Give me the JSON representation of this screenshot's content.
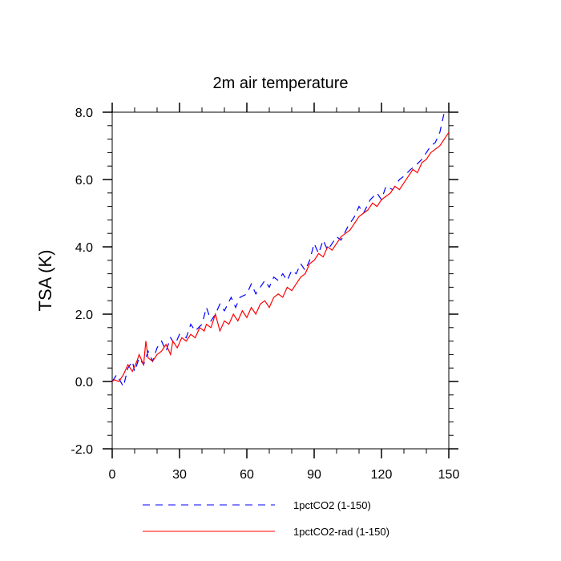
{
  "chart_data": {
    "type": "line",
    "title": "2m air temperature",
    "xlabel": "",
    "ylabel": "TSA  (K)",
    "xlim": [
      0,
      150
    ],
    "ylim": [
      -2.0,
      8.0
    ],
    "x_ticks": [
      0,
      30,
      60,
      90,
      120,
      150
    ],
    "x_tick_labels": [
      "0",
      "30",
      "60",
      "90",
      "120",
      "150"
    ],
    "y_ticks": [
      -2.0,
      0.0,
      2.0,
      4.0,
      6.0,
      8.0
    ],
    "y_tick_labels": [
      "-2.0",
      "0.0",
      "2.0",
      "4.0",
      "6.0",
      "8.0"
    ],
    "grid": false,
    "legend_position": "bottom",
    "series": [
      {
        "name": "1pctCO2 (1-150)",
        "color": "#0000ff",
        "style": "dashed",
        "x": [
          0,
          2,
          5,
          7,
          9,
          10,
          12,
          14,
          16,
          18,
          20,
          22,
          24,
          26,
          28,
          30,
          33,
          35,
          37,
          40,
          42,
          44,
          46,
          48,
          50,
          53,
          55,
          57,
          60,
          62,
          64,
          66,
          68,
          70,
          72,
          74,
          76,
          78,
          80,
          82,
          84,
          86,
          88,
          90,
          92,
          94,
          96,
          98,
          100,
          102,
          105,
          108,
          110,
          112,
          115,
          118,
          120,
          122,
          125,
          128,
          130,
          133,
          135,
          138,
          140,
          142,
          144,
          146,
          148
        ],
        "y": [
          0.0,
          0.2,
          -0.15,
          0.4,
          0.6,
          0.3,
          0.7,
          0.5,
          0.9,
          0.6,
          1.0,
          1.2,
          0.9,
          1.3,
          1.1,
          1.4,
          1.3,
          1.7,
          1.5,
          1.7,
          2.2,
          1.8,
          2.0,
          2.3,
          2.1,
          2.5,
          2.2,
          2.5,
          2.6,
          2.9,
          2.6,
          2.8,
          3.0,
          2.8,
          3.1,
          3.0,
          3.2,
          3.0,
          3.3,
          3.2,
          3.5,
          3.3,
          3.6,
          4.1,
          3.8,
          4.2,
          3.9,
          4.1,
          4.3,
          4.2,
          4.6,
          4.9,
          5.2,
          5.0,
          5.4,
          5.6,
          5.4,
          5.8,
          5.7,
          6.0,
          6.1,
          6.3,
          6.4,
          6.6,
          6.8,
          7.0,
          7.1,
          7.4,
          8.0
        ]
      },
      {
        "name": "1pctCO2-rad (1-150)",
        "color": "#ff0000",
        "style": "solid",
        "x": [
          0,
          1,
          3,
          5,
          7,
          9,
          11,
          12,
          14,
          15,
          16,
          18,
          20,
          22,
          24,
          26,
          27,
          29,
          31,
          33,
          35,
          37,
          39,
          41,
          42,
          44,
          46,
          48,
          50,
          52,
          54,
          56,
          58,
          60,
          62,
          64,
          66,
          68,
          70,
          72,
          74,
          76,
          78,
          80,
          82,
          84,
          86,
          88,
          90,
          92,
          94,
          96,
          98,
          100,
          102,
          104,
          106,
          108,
          110,
          112,
          114,
          116,
          118,
          120,
          122,
          124,
          126,
          128,
          130,
          132,
          134,
          136,
          138,
          140,
          142,
          144,
          146,
          148,
          150
        ],
        "y": [
          0.0,
          0.05,
          0.0,
          0.2,
          0.5,
          0.3,
          0.6,
          0.8,
          0.5,
          1.2,
          0.7,
          0.6,
          0.8,
          0.9,
          1.1,
          0.8,
          1.2,
          1.0,
          1.3,
          1.2,
          1.4,
          1.3,
          1.6,
          1.5,
          1.7,
          1.6,
          2.0,
          1.5,
          1.8,
          1.7,
          2.0,
          1.8,
          2.1,
          1.9,
          2.2,
          2.0,
          2.3,
          2.4,
          2.2,
          2.5,
          2.6,
          2.5,
          2.8,
          2.7,
          2.9,
          3.1,
          3.2,
          3.5,
          3.6,
          3.8,
          3.7,
          4.0,
          3.9,
          4.1,
          4.3,
          4.4,
          4.5,
          4.7,
          4.9,
          5.0,
          5.1,
          5.3,
          5.2,
          5.4,
          5.5,
          5.6,
          5.8,
          5.7,
          5.9,
          6.1,
          6.3,
          6.2,
          6.5,
          6.6,
          6.8,
          6.9,
          7.0,
          7.2,
          7.4
        ]
      }
    ]
  }
}
